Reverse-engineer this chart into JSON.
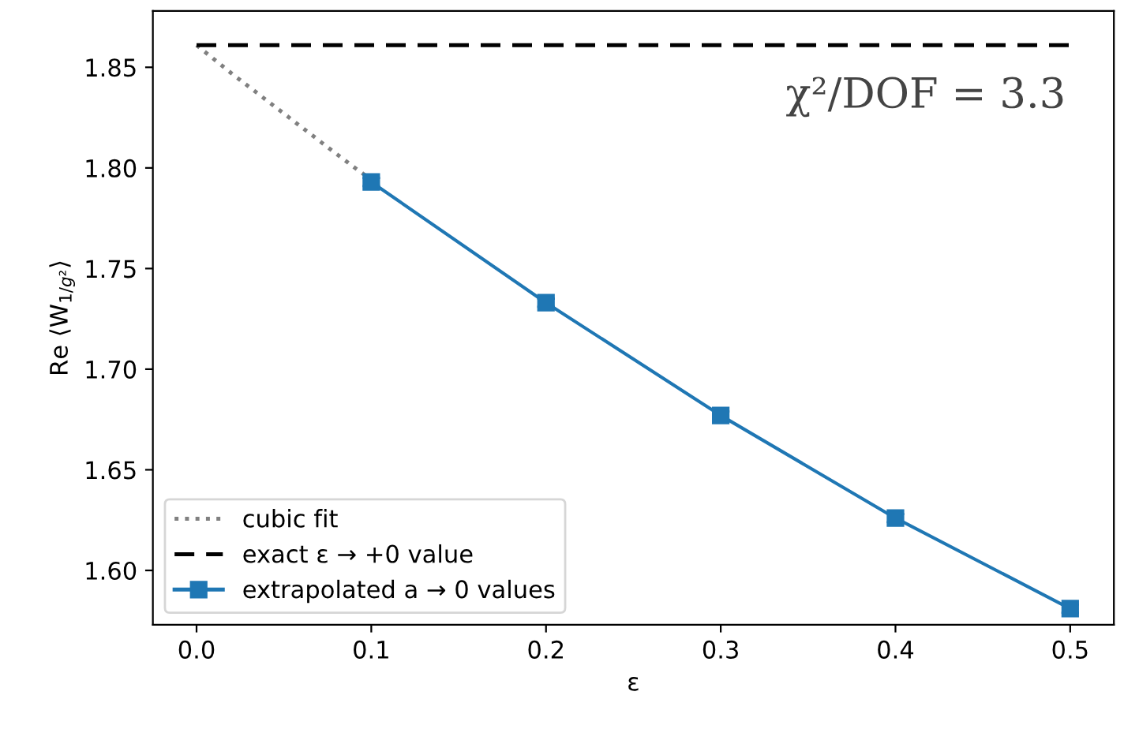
{
  "chart_data": {
    "type": "line",
    "xlabel": "ε",
    "ylabel": "Re ⟨W$_{1/g²}$⟩",
    "xlim": [
      -0.025,
      0.525
    ],
    "xticks": [
      {
        "value": 0.0,
        "label": "0.0"
      },
      0.1,
      0.2,
      0.3,
      0.4,
      0.5
    ],
    "ylim": [
      1.573,
      1.878
    ],
    "yticks": [
      {
        "value": 1.6,
        "label": "1.60"
      },
      1.65,
      {
        "value": 1.7,
        "label": "1.70"
      },
      1.75,
      {
        "value": 1.8,
        "label": "1.80"
      },
      1.85
    ],
    "series": [
      {
        "name": "cubic fit",
        "color": "#808080",
        "line_style": "dotted",
        "marker": "none",
        "x": [
          0.0,
          0.02,
          0.05,
          0.08,
          0.1
        ],
        "values": [
          1.861,
          1.847,
          1.827,
          1.807,
          1.794
        ]
      },
      {
        "name": "exact ε → +0 value",
        "color": "#000000",
        "line_style": "dashed",
        "marker": "none",
        "x": [
          0.0,
          0.5
        ],
        "values": [
          1.861,
          1.861
        ]
      },
      {
        "name": "extrapolated a → 0 values",
        "color": "#1f77b4",
        "line_style": "solid",
        "marker": "square",
        "x": [
          0.1,
          0.2,
          0.3,
          0.4,
          0.5
        ],
        "values": [
          1.793,
          1.733,
          1.677,
          1.626,
          1.581
        ],
        "errors": [
          0.002,
          0.002,
          0.002,
          0.002,
          0.002
        ]
      }
    ],
    "annotations": [
      {
        "text": "χ²/DOF = 3.3"
      }
    ],
    "legend": "bottom left",
    "grid": false
  }
}
